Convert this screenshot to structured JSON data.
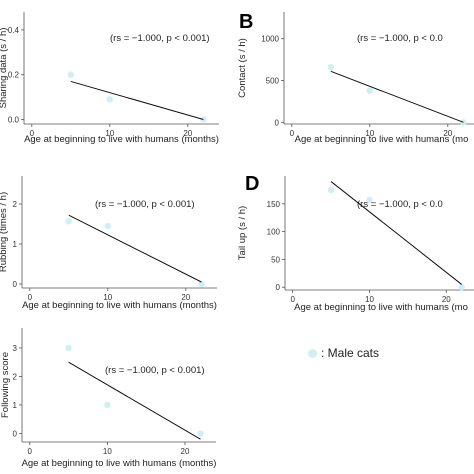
{
  "chart_data": [
    {
      "type": "scatter",
      "panel_letter": "",
      "ylabel": "Sharing data (s / h)",
      "xlabel": "Age at beginning to live with humans (months)",
      "annotation": "(rs = −1.000, p < 0.001)",
      "xlim": [
        -1,
        24
      ],
      "ylim": [
        -0.02,
        0.48
      ],
      "xticks": [
        0,
        10,
        20
      ],
      "yticks": [
        0.0,
        0.2,
        0.4
      ],
      "ytick_labels": [
        "0.0",
        "0.2",
        "0.4"
      ],
      "points": [
        {
          "x": 5,
          "y": 0.2
        },
        {
          "x": 10,
          "y": 0.09
        },
        {
          "x": 22,
          "y": 0.0
        }
      ],
      "fit_line": [
        {
          "x": 5,
          "y": 0.17
        },
        {
          "x": 22,
          "y": 0.0
        }
      ]
    },
    {
      "type": "scatter",
      "panel_letter": "B",
      "ylabel": "Contact (s / h)",
      "xlabel": "Age at beginning to live with humans (mo",
      "annotation": "(rs = −1.000, p < 0.0",
      "xlim": [
        -1,
        24
      ],
      "ylim": [
        -20,
        1320
      ],
      "xticks": [
        0,
        10,
        20
      ],
      "yticks": [
        0,
        500,
        1000
      ],
      "ytick_labels": [
        "0",
        "500",
        "1000"
      ],
      "points": [
        {
          "x": 5,
          "y": 660
        },
        {
          "x": 10,
          "y": 380
        },
        {
          "x": 22,
          "y": 0
        }
      ],
      "fit_line": [
        {
          "x": 5,
          "y": 610
        },
        {
          "x": 22,
          "y": 0
        }
      ]
    },
    {
      "type": "scatter",
      "panel_letter": "",
      "ylabel": "Rubbing (times / h)",
      "xlabel": "Age at beginning to live with humans (months)",
      "annotation": "(rs = −1.000, p < 0.001)",
      "xlim": [
        -1,
        24
      ],
      "ylim": [
        -0.1,
        2.7
      ],
      "xticks": [
        0,
        10,
        20
      ],
      "yticks": [
        0,
        1,
        2
      ],
      "ytick_labels": [
        "0",
        "1",
        "2"
      ],
      "points": [
        {
          "x": 5,
          "y": 1.57
        },
        {
          "x": 10,
          "y": 1.45
        },
        {
          "x": 22,
          "y": 0.0
        }
      ],
      "fit_line": [
        {
          "x": 5,
          "y": 1.72
        },
        {
          "x": 22,
          "y": 0.05
        }
      ]
    },
    {
      "type": "scatter",
      "panel_letter": "D",
      "ylabel": "Tail up (s / h)",
      "xlabel": "Age at beginning to live with humans (mo",
      "annotation": "(rs = −1.000, p < 0.0",
      "xlim": [
        -1,
        24
      ],
      "ylim": [
        -5,
        200
      ],
      "xticks": [
        0,
        10,
        20
      ],
      "yticks": [
        0,
        50,
        100,
        150
      ],
      "ytick_labels": [
        "0",
        "50",
        "100",
        "150"
      ],
      "points": [
        {
          "x": 5,
          "y": 175
        },
        {
          "x": 10,
          "y": 157
        },
        {
          "x": 22,
          "y": 0
        }
      ],
      "fit_line": [
        {
          "x": 5,
          "y": 190
        },
        {
          "x": 22,
          "y": 5
        }
      ]
    },
    {
      "type": "scatter",
      "panel_letter": "",
      "ylabel": "Following score",
      "xlabel": "Age at beginning to live with humans (months)",
      "annotation": "(rs = −1.000, p < 0.001)",
      "xlim": [
        -1,
        24
      ],
      "ylim": [
        -0.3,
        3.7
      ],
      "xticks": [
        0,
        10,
        20
      ],
      "yticks": [
        0,
        1,
        2,
        3
      ],
      "ytick_labels": [
        "0",
        "1",
        "2",
        "3"
      ],
      "points": [
        {
          "x": 5,
          "y": 3.0
        },
        {
          "x": 10,
          "y": 1.0
        },
        {
          "x": 22,
          "y": 0.0
        }
      ],
      "fit_line": [
        {
          "x": 5,
          "y": 2.5
        },
        {
          "x": 22,
          "y": -0.2
        }
      ]
    }
  ],
  "legend": {
    "label": ": Male cats"
  },
  "colors": {
    "point": "#cfeff5",
    "line": "#111111",
    "axis": "#555555"
  }
}
